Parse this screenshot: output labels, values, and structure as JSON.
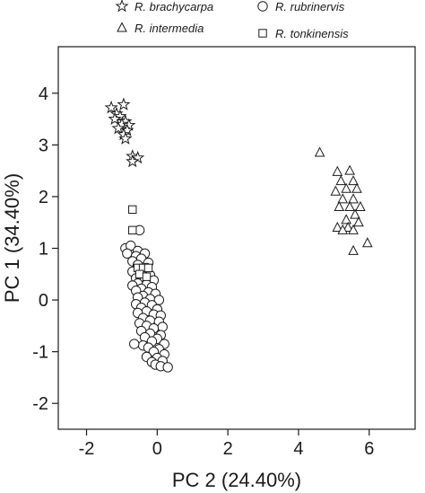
{
  "chart_data": {
    "type": "scatter",
    "xlabel": "PC 2 (24.40%)",
    "ylabel": "PC 1 (34.40%)",
    "xlim": [
      -2.8,
      7.3
    ],
    "ylim": [
      -2.5,
      4.9
    ],
    "xticks": [
      -2,
      0,
      2,
      4,
      6
    ],
    "yticks": [
      -2,
      -1,
      0,
      1,
      2,
      3,
      4
    ],
    "xtick_labels": [
      "-2",
      "0",
      "2",
      "4",
      "6"
    ],
    "ytick_labels": [
      "-2",
      "-1",
      "0",
      "1",
      "2",
      "3",
      "4"
    ],
    "grid": false,
    "legend_position": "top",
    "series": [
      {
        "name": "R. brachycarpa",
        "marker": "star",
        "points": [
          [
            -1.3,
            3.72
          ],
          [
            -0.95,
            3.78
          ],
          [
            -1.15,
            3.6
          ],
          [
            -1.05,
            3.55
          ],
          [
            -1.2,
            3.5
          ],
          [
            -0.9,
            3.45
          ],
          [
            -1.0,
            3.4
          ],
          [
            -0.8,
            3.38
          ],
          [
            -1.1,
            3.32
          ],
          [
            -0.85,
            3.28
          ],
          [
            -0.95,
            3.2
          ],
          [
            -0.9,
            3.12
          ],
          [
            -0.7,
            2.78
          ],
          [
            -0.55,
            2.75
          ],
          [
            -0.7,
            2.68
          ]
        ]
      },
      {
        "name": "R. rubrinervis",
        "marker": "circle",
        "points": [
          [
            -0.5,
            1.35
          ],
          [
            -0.9,
            1.0
          ],
          [
            -0.75,
            1.05
          ],
          [
            -0.55,
            0.95
          ],
          [
            -0.35,
            0.9
          ],
          [
            -0.85,
            0.9
          ],
          [
            -0.6,
            0.85
          ],
          [
            -0.45,
            0.8
          ],
          [
            -0.7,
            0.75
          ],
          [
            -0.25,
            0.72
          ],
          [
            -0.55,
            0.68
          ],
          [
            -0.3,
            0.62
          ],
          [
            -0.5,
            0.6
          ],
          [
            -0.7,
            0.55
          ],
          [
            -0.45,
            0.5
          ],
          [
            -0.2,
            0.48
          ],
          [
            -0.6,
            0.42
          ],
          [
            -0.35,
            0.4
          ],
          [
            -0.1,
            0.38
          ],
          [
            -0.55,
            0.32
          ],
          [
            -0.3,
            0.3
          ],
          [
            -0.7,
            0.28
          ],
          [
            -0.15,
            0.25
          ],
          [
            -0.45,
            0.22
          ],
          [
            -0.6,
            0.18
          ],
          [
            -0.25,
            0.15
          ],
          [
            -0.05,
            0.12
          ],
          [
            -0.4,
            0.08
          ],
          [
            -0.55,
            0.05
          ],
          [
            -0.2,
            0.02
          ],
          [
            0.05,
            0.0
          ],
          [
            -0.35,
            -0.05
          ],
          [
            -0.6,
            -0.08
          ],
          [
            -0.15,
            -0.1
          ],
          [
            -0.45,
            -0.15
          ],
          [
            0.0,
            -0.18
          ],
          [
            -0.3,
            -0.22
          ],
          [
            -0.55,
            -0.25
          ],
          [
            -0.1,
            -0.28
          ],
          [
            0.1,
            -0.3
          ],
          [
            -0.4,
            -0.35
          ],
          [
            -0.2,
            -0.4
          ],
          [
            0.05,
            -0.42
          ],
          [
            -0.5,
            -0.45
          ],
          [
            -0.3,
            -0.5
          ],
          [
            0.15,
            -0.52
          ],
          [
            -0.1,
            -0.55
          ],
          [
            -0.45,
            -0.6
          ],
          [
            -0.2,
            -0.65
          ],
          [
            0.1,
            -0.68
          ],
          [
            -0.35,
            -0.72
          ],
          [
            0.0,
            -0.75
          ],
          [
            -0.15,
            -0.8
          ],
          [
            0.2,
            -0.85
          ],
          [
            -0.4,
            -0.88
          ],
          [
            -0.25,
            -0.92
          ],
          [
            0.05,
            -0.95
          ],
          [
            -0.1,
            -1.0
          ],
          [
            0.2,
            -1.05
          ],
          [
            -0.3,
            -1.1
          ],
          [
            0.0,
            -1.12
          ],
          [
            0.15,
            -1.18
          ],
          [
            -0.15,
            -1.2
          ],
          [
            -0.05,
            -1.25
          ],
          [
            0.1,
            -1.28
          ],
          [
            0.3,
            -1.3
          ],
          [
            -0.65,
            -0.85
          ]
        ]
      },
      {
        "name": "R. intermedia",
        "marker": "triangle",
        "points": [
          [
            4.6,
            2.85
          ],
          [
            5.1,
            2.48
          ],
          [
            5.45,
            2.5
          ],
          [
            5.2,
            2.3
          ],
          [
            5.55,
            2.3
          ],
          [
            5.05,
            2.1
          ],
          [
            5.35,
            2.15
          ],
          [
            5.65,
            2.15
          ],
          [
            5.25,
            1.95
          ],
          [
            5.55,
            1.95
          ],
          [
            5.15,
            1.8
          ],
          [
            5.45,
            1.8
          ],
          [
            5.75,
            1.8
          ],
          [
            5.6,
            1.65
          ],
          [
            5.35,
            1.55
          ],
          [
            5.7,
            1.5
          ],
          [
            5.1,
            1.4
          ],
          [
            5.4,
            1.4
          ],
          [
            5.55,
            1.35
          ],
          [
            5.25,
            1.35
          ],
          [
            5.95,
            1.1
          ],
          [
            5.55,
            0.95
          ]
        ]
      },
      {
        "name": "R. tonkinensis",
        "marker": "square",
        "points": [
          [
            -0.7,
            1.75
          ],
          [
            -0.7,
            1.35
          ],
          [
            -0.55,
            0.62
          ],
          [
            -0.4,
            0.62
          ],
          [
            -0.25,
            0.62
          ],
          [
            -0.5,
            0.5
          ],
          [
            -0.3,
            0.45
          ]
        ]
      }
    ],
    "legend": [
      {
        "label": "R. brachycarpa",
        "marker": "star"
      },
      {
        "label": "R. rubrinervis",
        "marker": "circle"
      },
      {
        "label": "R. intermedia",
        "marker": "triangle"
      },
      {
        "label": "R. tonkinensis",
        "marker": "square"
      }
    ]
  }
}
